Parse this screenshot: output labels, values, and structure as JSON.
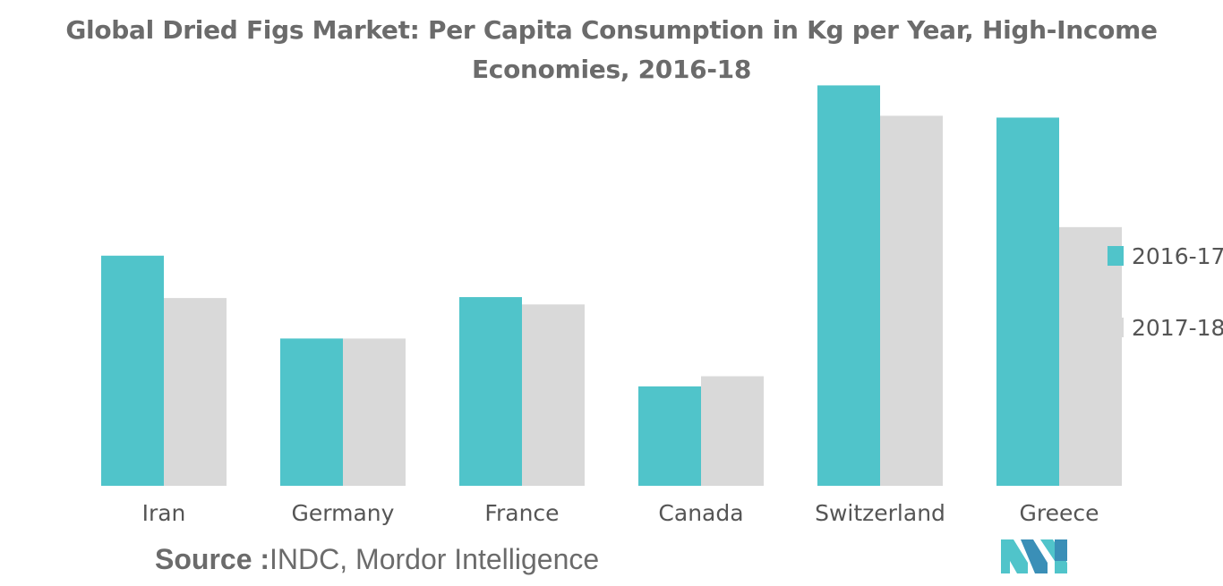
{
  "chart_data": {
    "type": "bar",
    "title": "Global Dried Figs Market: Per Capita Consumption in Kg per Year, High-Income Economies, 2016-18",
    "categories": [
      "Iran",
      "Germany",
      "France",
      "Canada",
      "Switzerland",
      "Greece"
    ],
    "series": [
      {
        "name": "2016-17",
        "color": "#50c4ca",
        "values": [
          0.25,
          0.16,
          0.205,
          0.108,
          0.435,
          0.4
        ]
      },
      {
        "name": "2017-18",
        "color": "#d9d9d9",
        "values": [
          0.204,
          0.16,
          0.197,
          0.119,
          0.402,
          0.281
        ]
      }
    ],
    "xlabel": "",
    "ylabel": "",
    "ylim": [
      0,
      0.45
    ],
    "grid": false,
    "legend": "right"
  },
  "source": {
    "label": "Source :",
    "text": "INDC, Mordor Intelligence"
  },
  "logo": {
    "icon": "mordor-intelligence-logo-icon",
    "color": "#50c4ca"
  }
}
